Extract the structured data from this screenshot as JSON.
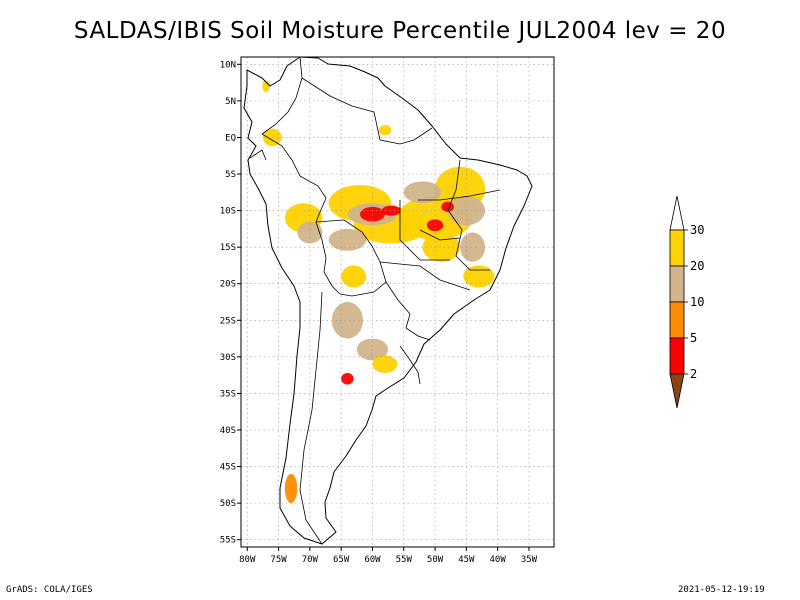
{
  "title": "SALDAS/IBIS Soil Moisture Percentile JUL2004 lev = 20",
  "footer": {
    "left": "GrADS: COLA/IGES",
    "right": "2021-05-12-19:19"
  },
  "chart_data": {
    "type": "heatmap",
    "title": "SALDAS/IBIS Soil Moisture Percentile JUL2004 lev = 20",
    "xlim": [
      -81,
      -31
    ],
    "ylim": [
      -56,
      11
    ],
    "x_ticks": [
      {
        "value": -80,
        "label": "80W"
      },
      {
        "value": -75,
        "label": "75W"
      },
      {
        "value": -70,
        "label": "70W"
      },
      {
        "value": -65,
        "label": "65W"
      },
      {
        "value": -60,
        "label": "60W"
      },
      {
        "value": -55,
        "label": "55W"
      },
      {
        "value": -50,
        "label": "50W"
      },
      {
        "value": -45,
        "label": "45W"
      },
      {
        "value": -40,
        "label": "40W"
      },
      {
        "value": -35,
        "label": "35W"
      }
    ],
    "y_ticks": [
      {
        "value": 10,
        "label": "10N"
      },
      {
        "value": 5,
        "label": "5N"
      },
      {
        "value": 0,
        "label": "EQ"
      },
      {
        "value": -5,
        "label": "5S"
      },
      {
        "value": -10,
        "label": "10S"
      },
      {
        "value": -15,
        "label": "15S"
      },
      {
        "value": -20,
        "label": "20S"
      },
      {
        "value": -25,
        "label": "25S"
      },
      {
        "value": -30,
        "label": "30S"
      },
      {
        "value": -35,
        "label": "35S"
      },
      {
        "value": -40,
        "label": "40S"
      },
      {
        "value": -45,
        "label": "45S"
      },
      {
        "value": -50,
        "label": "50S"
      },
      {
        "value": -55,
        "label": "55S"
      }
    ],
    "grid": true,
    "legend_position": "right",
    "legend": {
      "levels": [
        "30",
        "20",
        "10",
        "5",
        "2"
      ],
      "colors": [
        "#ffffff",
        "#ffd200",
        "#d2b48c",
        "#ff8c00",
        "#ff0000",
        "#8b4513"
      ]
    },
    "regions": [
      {
        "lon": -62,
        "lat": -9,
        "rx": 5,
        "ry": 2.5,
        "color": "#ffd200"
      },
      {
        "lon": -57,
        "lat": -12,
        "rx": 6,
        "ry": 2.5,
        "color": "#ffd200"
      },
      {
        "lon": -50,
        "lat": -11,
        "rx": 6,
        "ry": 3,
        "color": "#ffd200"
      },
      {
        "lon": -46,
        "lat": -7,
        "rx": 4,
        "ry": 3,
        "color": "#ffd200"
      },
      {
        "lon": -45,
        "lat": -10,
        "rx": 3,
        "ry": 2,
        "color": "#d2b48c"
      },
      {
        "lon": -52,
        "lat": -7.5,
        "rx": 3,
        "ry": 1.5,
        "color": "#d2b48c"
      },
      {
        "lon": -60,
        "lat": -10.5,
        "rx": 4,
        "ry": 1.5,
        "color": "#d2b48c"
      },
      {
        "lon": -64,
        "lat": -14,
        "rx": 3,
        "ry": 1.5,
        "color": "#d2b48c"
      },
      {
        "lon": -71,
        "lat": -11,
        "rx": 3,
        "ry": 2,
        "color": "#ffd200"
      },
      {
        "lon": -70,
        "lat": -13,
        "rx": 2,
        "ry": 1.5,
        "color": "#d2b48c"
      },
      {
        "lon": -60,
        "lat": -10.5,
        "rx": 2,
        "ry": 1,
        "color": "#ff0000"
      },
      {
        "lon": -57,
        "lat": -10,
        "rx": 1.5,
        "ry": 0.7,
        "color": "#ff0000"
      },
      {
        "lon": -50,
        "lat": -12,
        "rx": 1.3,
        "ry": 0.8,
        "color": "#ff0000"
      },
      {
        "lon": -48,
        "lat": -9.5,
        "rx": 1,
        "ry": 0.7,
        "color": "#ff0000"
      },
      {
        "lon": -49,
        "lat": -15,
        "rx": 3,
        "ry": 2,
        "color": "#ffd200"
      },
      {
        "lon": -44,
        "lat": -15,
        "rx": 2,
        "ry": 2,
        "color": "#d2b48c"
      },
      {
        "lon": -43,
        "lat": -19,
        "rx": 2.5,
        "ry": 1.5,
        "color": "#ffd200"
      },
      {
        "lon": -63,
        "lat": -19,
        "rx": 2,
        "ry": 1.5,
        "color": "#ffd200"
      },
      {
        "lon": -64,
        "lat": -25,
        "rx": 2.5,
        "ry": 2.5,
        "color": "#d2b48c"
      },
      {
        "lon": -60,
        "lat": -29,
        "rx": 2.5,
        "ry": 1.5,
        "color": "#d2b48c"
      },
      {
        "lon": -64,
        "lat": -33,
        "rx": 1,
        "ry": 0.8,
        "color": "#ff0000"
      },
      {
        "lon": -58,
        "lat": -31,
        "rx": 2,
        "ry": 1.2,
        "color": "#ffd200"
      },
      {
        "lon": -58,
        "lat": 1,
        "rx": 1,
        "ry": 0.7,
        "color": "#ffd200"
      },
      {
        "lon": -76,
        "lat": 0,
        "rx": 1.5,
        "ry": 1.2,
        "color": "#ffd200"
      },
      {
        "lon": -77,
        "lat": 7,
        "rx": 0.6,
        "ry": 0.8,
        "color": "#ffd200"
      },
      {
        "lon": -73,
        "lat": -48,
        "rx": 1,
        "ry": 2,
        "color": "#ff8c00"
      }
    ]
  }
}
